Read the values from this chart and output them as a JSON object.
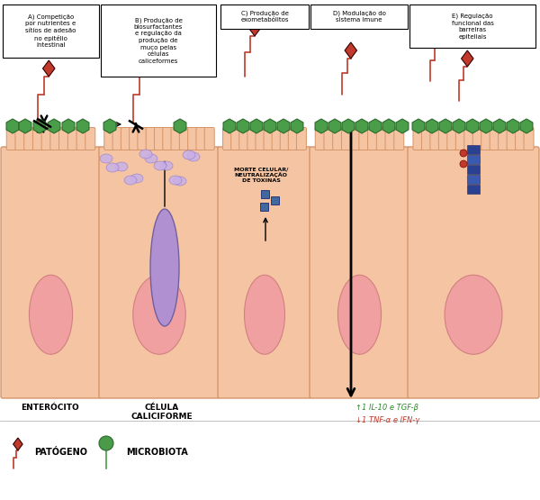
{
  "bg_color": "#ffffff",
  "cell_color": "#f5c5a3",
  "cell_border": "#d4956a",
  "nucleus_color": "#f0a0a0",
  "nucleus_border": "#d08080",
  "green_hex_color": "#4a9e4a",
  "red_diamond": "#c0392b",
  "blue_square": "#4169a0",
  "purple_goblet": "#b090d0",
  "purple_oval_fc": "#c8b0e8",
  "purple_oval_ec": "#9880c8",
  "label_A": "A) Competição\npor nutrientes e\nsítios de adesão\nno epitélio\nintestinal",
  "label_B": "B) Produção de\nbiosurfactantes\ne regulação da\nprodução de\nmuco pelas\ncélulas\ncaliceformes",
  "label_C": "C) Produção de\nexometabólitos",
  "label_D": "D) Modulação do\nsistema imune",
  "label_E": "E) Regulação\nfuncional das\nbarreiras\nepiteliais",
  "enterocito": "ENTERÓCITO",
  "celula_cal": "CÉLULA\nCALICIFORME",
  "morte_label": "MORTE CELULAR/\nNEUTRALIZAÇÃO\nDE TOXINAS",
  "green_up": "↑1 IL-10 e TGF-β",
  "red_down": "↓1 TNF-α e IFN-γ",
  "pathogen_label": "PATÓGENO",
  "microbiota_label": "MICROBIOTA"
}
